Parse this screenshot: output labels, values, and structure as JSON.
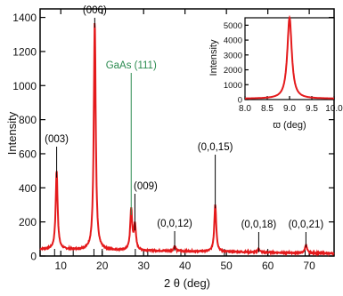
{
  "chart_data": [
    {
      "type": "line",
      "xlabel": "2 θ (deg)",
      "ylabel": "Intensity",
      "xlim": [
        5,
        76
      ],
      "ylim": [
        0,
        1450
      ],
      "xticks": [
        "10",
        "20",
        "30",
        "40",
        "50",
        "60",
        "70"
      ],
      "yticks": [
        "0",
        "200",
        "400",
        "600",
        "800",
        "1000",
        "1200",
        "1400"
      ],
      "series_color": "#e41a1c",
      "baseline": 40,
      "peaks": [
        {
          "x": 9.0,
          "y": 460,
          "label": "(003)"
        },
        {
          "x": 18.2,
          "y": 1340,
          "label": "(006)"
        },
        {
          "x": 27.0,
          "y": 240,
          "label": "GaAs (111)",
          "label_color": "#2a8a4f"
        },
        {
          "x": 27.9,
          "y": 150,
          "label": "(009)"
        },
        {
          "x": 37.5,
          "y": 30,
          "label": "(0,0,12)"
        },
        {
          "x": 47.3,
          "y": 280,
          "label": "(0,0,15)"
        },
        {
          "x": 57.8,
          "y": 22,
          "label": "(0,0,18)"
        },
        {
          "x": 69.2,
          "y": 50,
          "label": "(0,0,21)"
        }
      ],
      "bottom_markers_x": [
        8.5,
        13,
        18,
        20,
        28,
        31,
        39,
        49.5,
        60,
        69
      ]
    },
    {
      "type": "line",
      "xlabel": "ϖ (deg)",
      "ylabel": "Intensity",
      "xlim": [
        8.0,
        10.0
      ],
      "ylim": [
        0,
        5500
      ],
      "xticks": [
        "8.0",
        "8.5",
        "9.0",
        "9.5",
        "10.0"
      ],
      "yticks": [
        "0",
        "1000",
        "2000",
        "3000",
        "4000",
        "5000"
      ],
      "series_color": "#e41a1c",
      "peak": {
        "x": 9.0,
        "y": 5450,
        "fwhm": 0.12
      }
    }
  ]
}
